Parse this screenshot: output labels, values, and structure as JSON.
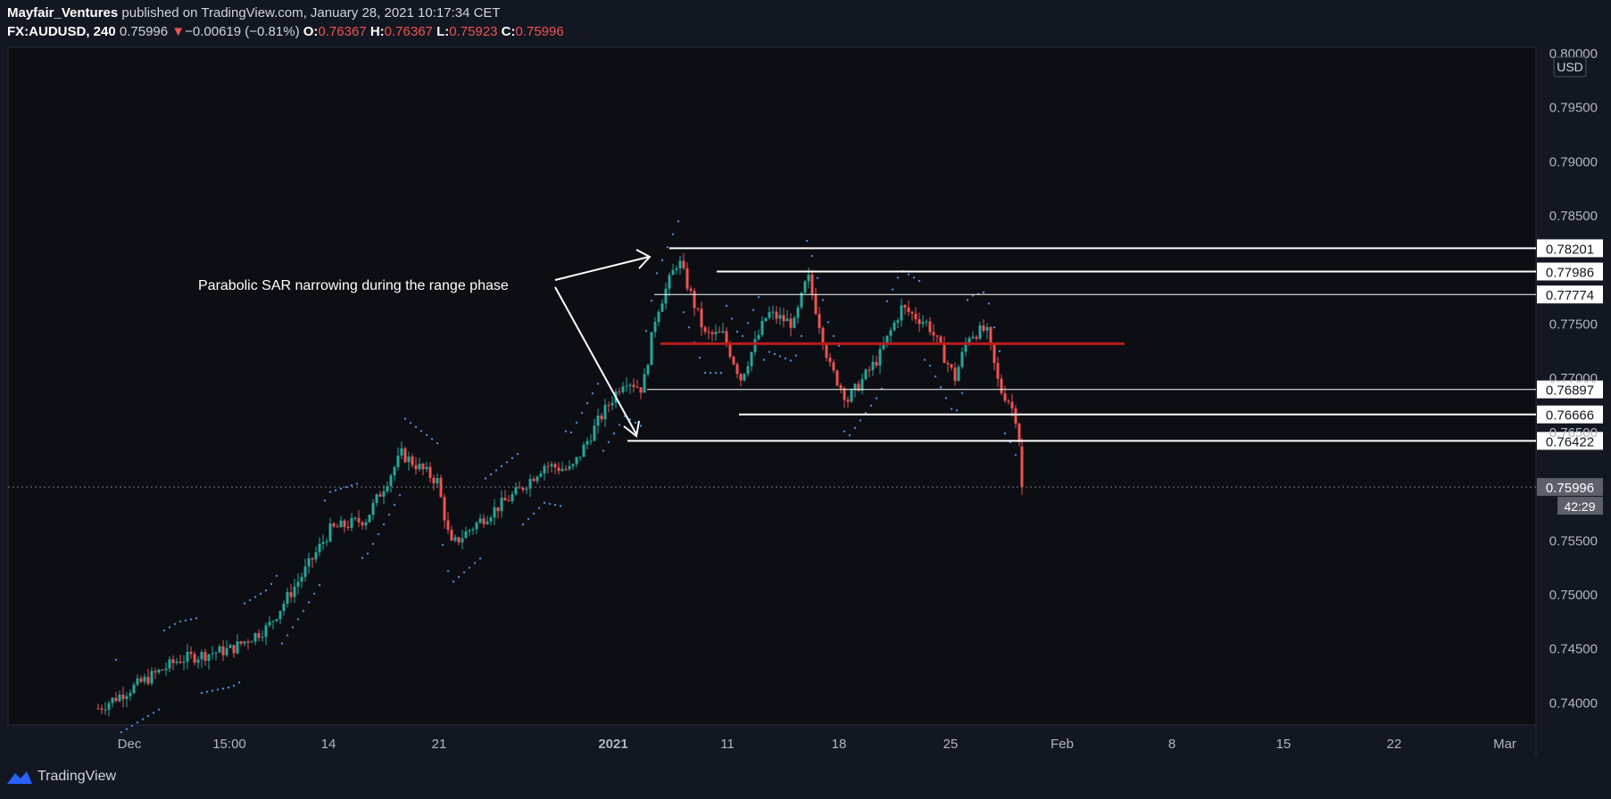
{
  "header": {
    "author": "Mayfair_Ventures",
    "published_text": "published on TradingView.com, January 28, 2021 10:17:34 CET",
    "symbol": "FX:AUDUSD, 240",
    "last": "0.75996",
    "change": "−0.00619 (−0.81%)",
    "o_label": "O:",
    "o_value": "0.76367",
    "h_label": "H:",
    "h_value": "0.76367",
    "l_label": "L:",
    "l_value": "0.75923",
    "c_label": "C:",
    "c_value": "0.75996"
  },
  "footer": {
    "brand": "TradingView"
  },
  "colors": {
    "up": "#26a69a",
    "down": "#ef5350",
    "sar": "#4f8ad9",
    "bg": "#131722",
    "level": "#ffffff",
    "mid": "#b71c1c"
  },
  "chart_data": {
    "type": "candlestick",
    "currency": "USD",
    "countdown": "42:29",
    "y_ticks": [
      "0.80000",
      "0.79500",
      "0.79000",
      "0.78500",
      "0.77500",
      "0.77000",
      "0.76500",
      "0.75500",
      "0.75000",
      "0.74500",
      "0.74000"
    ],
    "x_ticks": [
      "Dec",
      "15:00",
      "14",
      "21",
      "2021",
      "11",
      "18",
      "25",
      "Feb",
      "8",
      "15",
      "22",
      "Mar"
    ],
    "levels": [
      "0.78201",
      "0.77986",
      "0.77774",
      "0.76897",
      "0.76666",
      "0.76422"
    ],
    "mid_level": 0.7732,
    "last_price": "0.75996",
    "annotation": "Parabolic SAR narrowing during the range phase"
  }
}
